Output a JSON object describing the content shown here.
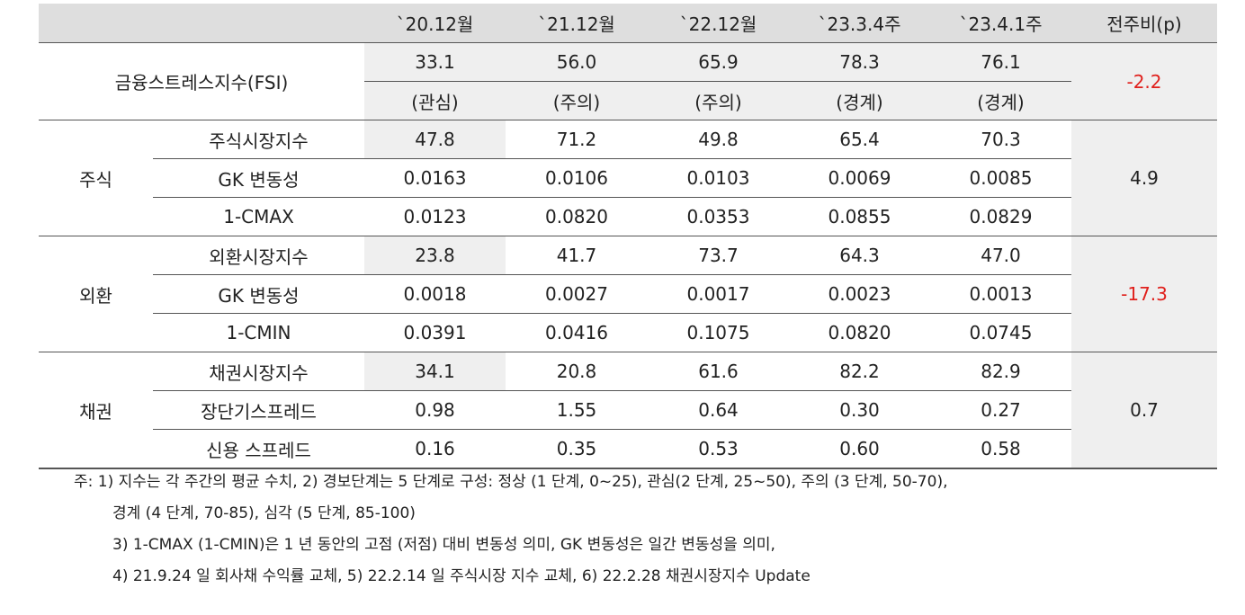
{
  "header": [
    "",
    "",
    "`20.12월",
    "`21.12월",
    "`22.12월",
    "`23.3.4주",
    "`23.4.1주",
    "전주비(p)"
  ],
  "fsi": {
    "label": "금융스트레스지수(FSI)",
    "values": [
      "33.1",
      "56.0",
      "65.9",
      "78.3",
      "76.1"
    ],
    "levels": [
      "(관심)",
      "(주의)",
      "(주의)",
      "(경계)",
      "(경계)"
    ],
    "change": "-2.2"
  },
  "sections": [
    {
      "name": "주식",
      "change": "4.9",
      "rows": [
        {
          "label": "주식시장지수",
          "values": [
            "47.8",
            "71.2",
            "49.8",
            "65.4",
            "70.3"
          ]
        },
        {
          "label": "GK 변동성",
          "values": [
            "0.0163",
            "0.0106",
            "0.0103",
            "0.0069",
            "0.0085"
          ]
        },
        {
          "label": "1-CMAX",
          "values": [
            "0.0123",
            "0.0820",
            "0.0353",
            "0.0855",
            "0.0829"
          ]
        }
      ]
    },
    {
      "name": "외환",
      "change": "-17.3",
      "rows": [
        {
          "label": "외환시장지수",
          "values": [
            "23.8",
            "41.7",
            "73.7",
            "64.3",
            "47.0"
          ]
        },
        {
          "label": "GK 변동성",
          "values": [
            "0.0018",
            "0.0027",
            "0.0017",
            "0.0023",
            "0.0013"
          ]
        },
        {
          "label": "1-CMIN",
          "values": [
            "0.0391",
            "0.0416",
            "0.1075",
            "0.0820",
            "0.0745"
          ]
        }
      ]
    },
    {
      "name": "채권",
      "change": "0.7",
      "rows": [
        {
          "label": "채권시장지수",
          "values": [
            "34.1",
            "20.8",
            "61.6",
            "82.2",
            "82.9"
          ]
        },
        {
          "label": "장단기스프레드",
          "values": [
            "0.98",
            "1.55",
            "0.64",
            "0.30",
            "0.27"
          ]
        },
        {
          "label": "신용 스프레드",
          "values": [
            "0.16",
            "0.35",
            "0.53",
            "0.60",
            "0.58"
          ]
        }
      ]
    }
  ],
  "notes": [
    "주: 1) 지수는 각 주간의 평균 수치, 2) 경보단계는 5 단계로 구성: 정상 (1 단계, 0~25), 관심(2 단계, 25~50), 주의 (3 단계, 50-70),",
    "경계 (4 단계, 70-85), 심각 (5 단계, 85-100)",
    "3) 1-CMAX (1-CMIN)은 1 년 동안의 고점 (저점) 대비 변동성 의미, GK 변동성은 일간 변동성을 의미,",
    "4) 21.9.24 일 회사채 수익률 교체, 5) 22.2.14 일 주식시장 지수 교체, 6) 22.2.28 채권시장지수 Update"
  ],
  "colors": {
    "header_bg": "#dedede",
    "highlight_bg": "#efefef",
    "negative": "#e0201c",
    "rule": "#555555"
  }
}
